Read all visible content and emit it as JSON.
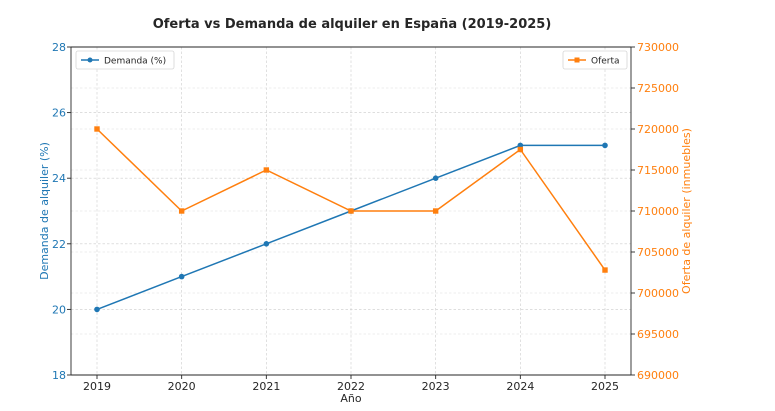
{
  "chart_data": {
    "type": "line",
    "title": "Oferta vs Demanda de alquiler en España (2019-2025)",
    "xlabel": "Año",
    "categories": [
      "2019",
      "2020",
      "2021",
      "2022",
      "2023",
      "2024",
      "2025"
    ],
    "grid": true,
    "series": [
      {
        "name": "Demanda (%)",
        "axis": "left",
        "color": "#1f77b4",
        "marker": "circle",
        "values": [
          20,
          21,
          22,
          23,
          24,
          25,
          25
        ]
      },
      {
        "name": "Oferta",
        "axis": "right",
        "color": "#ff7f0e",
        "marker": "square",
        "values": [
          720000,
          710000,
          715000,
          710000,
          710000,
          717500,
          702800
        ]
      }
    ],
    "y_left": {
      "label": "Demanda de alquiler (%)",
      "range": [
        18,
        28
      ],
      "ticks": [
        "18",
        "20",
        "22",
        "24",
        "26",
        "28"
      ],
      "color": "#1f77b4"
    },
    "y_right": {
      "label": "Oferta de alquiler (inmuebles)",
      "range": [
        690000,
        730000
      ],
      "ticks": [
        "690000",
        "695000",
        "700000",
        "705000",
        "710000",
        "715000",
        "720000",
        "725000",
        "730000"
      ],
      "color": "#ff7f0e"
    },
    "legend_left": {
      "placement": "top-left",
      "label": "Demanda (%)"
    },
    "legend_right": {
      "placement": "top-right",
      "label": "Oferta"
    }
  }
}
